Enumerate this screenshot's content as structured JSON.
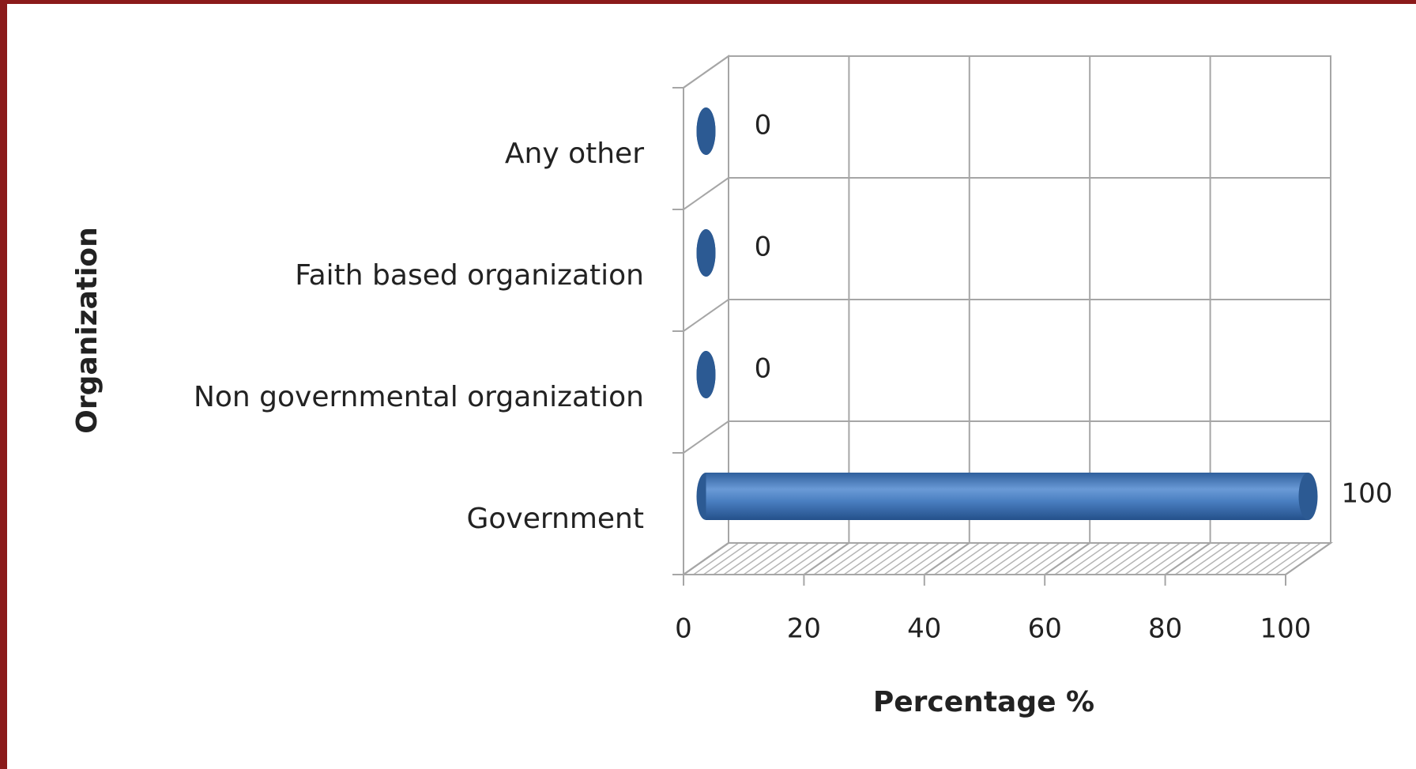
{
  "chart_data": {
    "type": "bar",
    "orientation": "horizontal",
    "x_label": "Percentage %",
    "y_label": "Organization",
    "categories": [
      "Government",
      "Non governmental organization",
      "Faith based organization",
      "Any other"
    ],
    "values": [
      100,
      0,
      0,
      0
    ],
    "color": "#3f76b8",
    "xlim": [
      0,
      100
    ],
    "xticks": [
      0,
      20,
      40,
      60,
      80,
      100
    ],
    "grid": true
  }
}
